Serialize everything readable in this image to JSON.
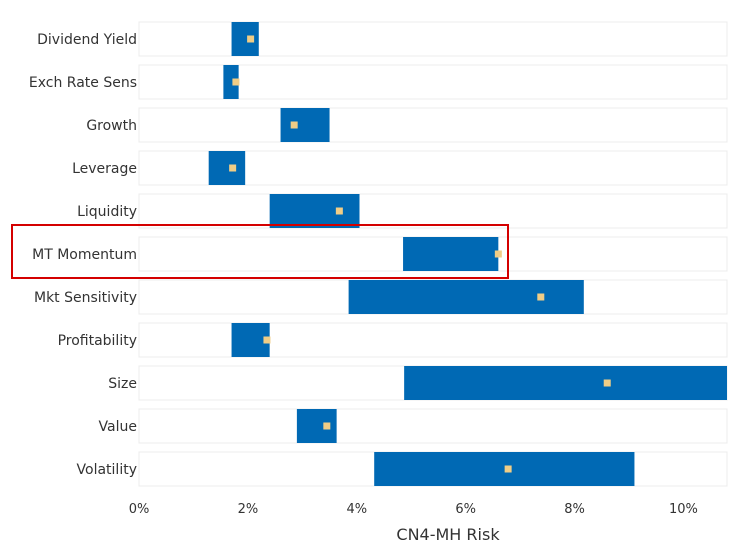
{
  "chart_data": {
    "type": "bar",
    "orientation": "horizontal",
    "categories": [
      "Dividend Yield",
      "Exch Rate Sens",
      "Growth",
      "Leverage",
      "Liquidity",
      "MT Momentum",
      "Mkt Sensitivity",
      "Profitability",
      "Size",
      "Value",
      "Volatility"
    ],
    "series": [
      {
        "type": "range",
        "low": [
          1.7,
          1.55,
          2.6,
          1.28,
          2.4,
          4.85,
          3.85,
          1.7,
          4.87,
          2.9,
          4.32
        ],
        "high": [
          2.2,
          1.83,
          3.5,
          1.95,
          4.05,
          6.6,
          8.17,
          2.4,
          10.8,
          3.63,
          9.1
        ]
      },
      {
        "type": "point",
        "values": [
          2.05,
          1.78,
          2.85,
          1.72,
          3.68,
          6.6,
          7.38,
          2.35,
          8.6,
          3.45,
          6.78
        ]
      }
    ],
    "highlighted_category": "MT Momentum",
    "xlabel": "CN4-MH Risk",
    "xlim": [
      0,
      10.8
    ],
    "xticks": [
      "0%",
      "2%",
      "4%",
      "6%",
      "8%",
      "10%"
    ],
    "xtick_values": [
      0,
      2,
      4,
      6,
      8,
      10
    ],
    "colors": {
      "range_bar": "#0069b4",
      "point": "#f0cd86",
      "row_background": "#ffffff",
      "row_border": "#ececec",
      "highlight_box": "#d40000"
    }
  }
}
